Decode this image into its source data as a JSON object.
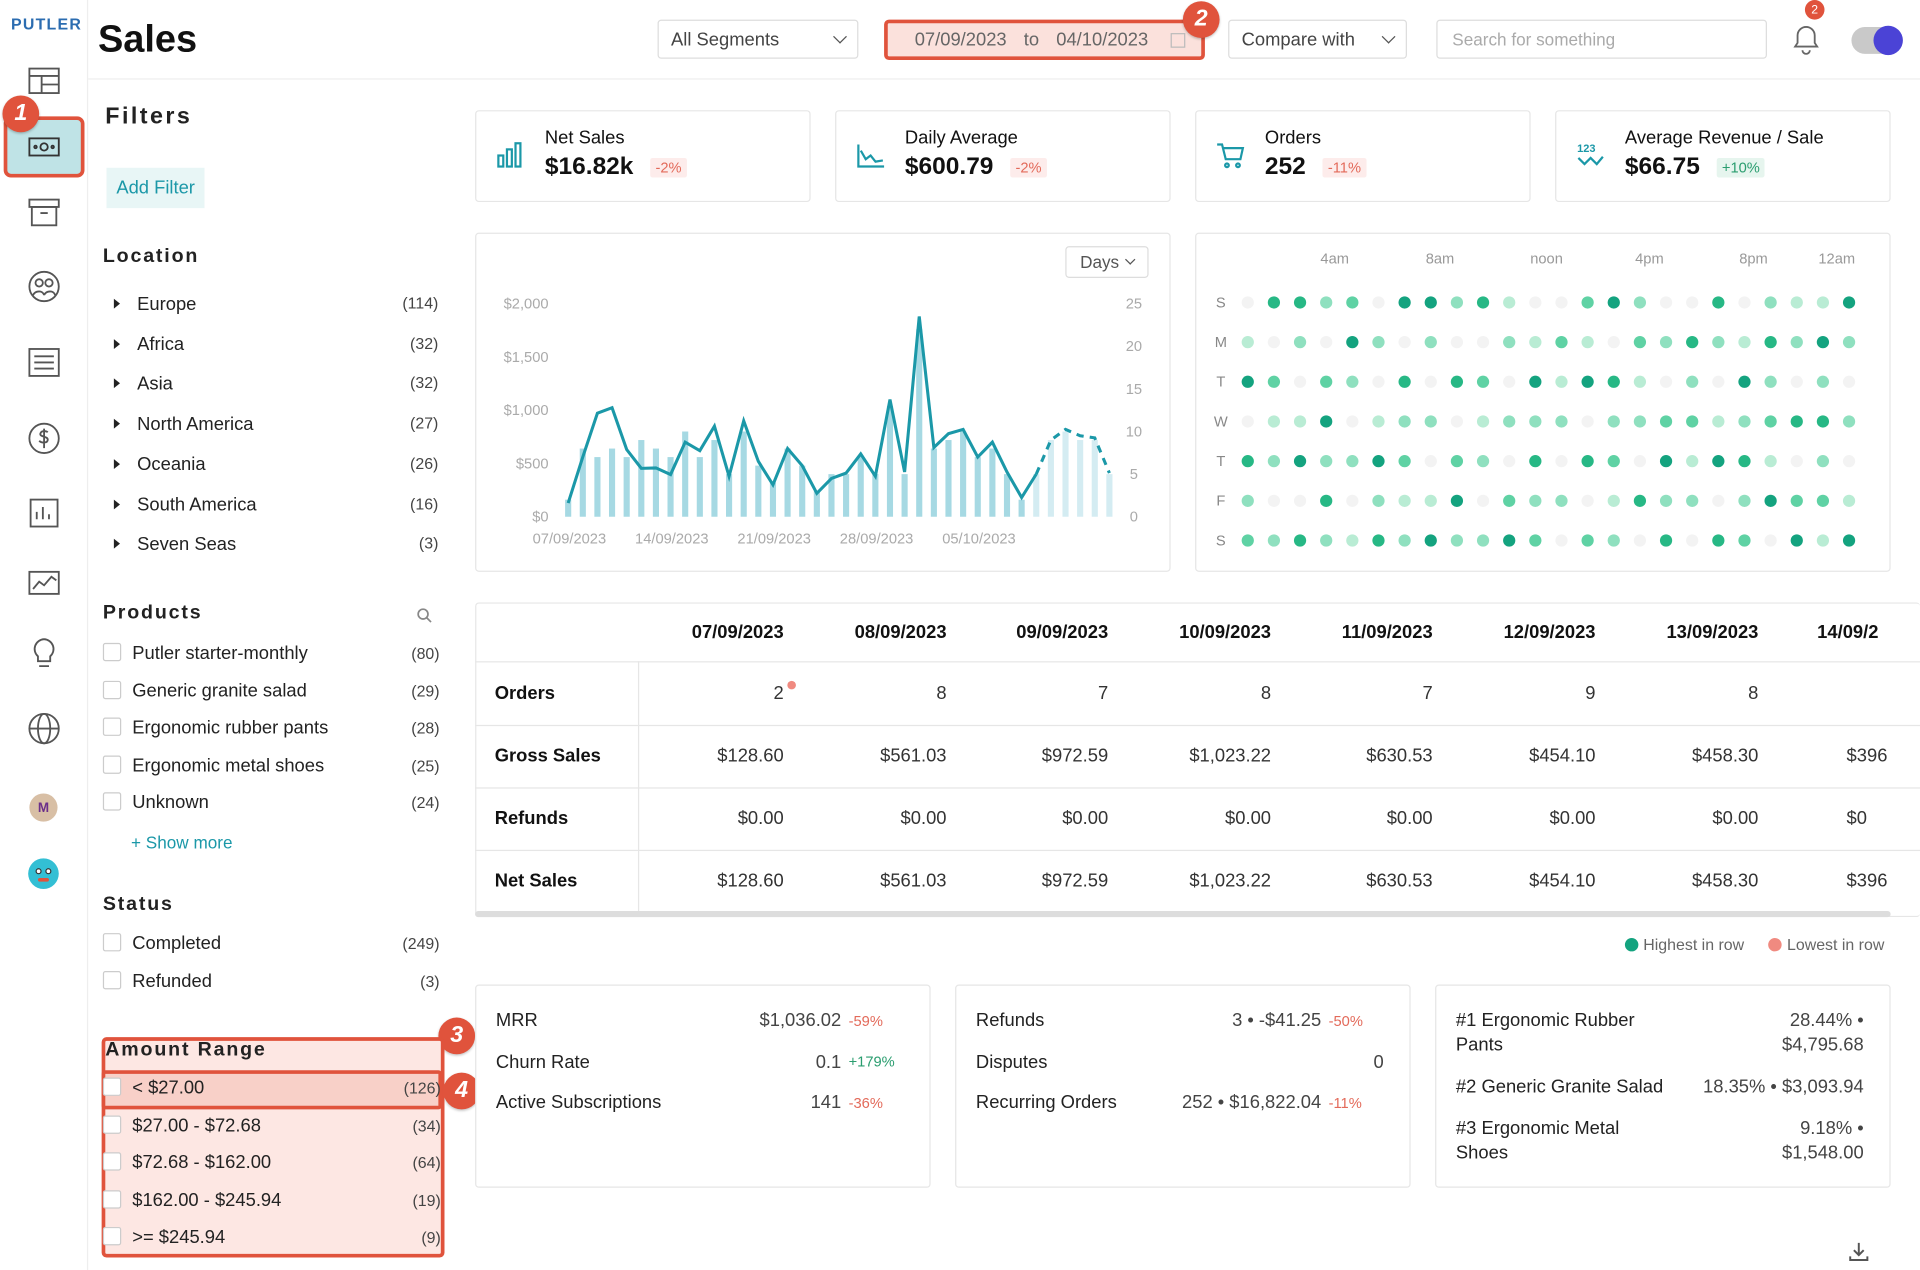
{
  "app": {
    "logo": "PUTLER",
    "page_title": "Sales"
  },
  "header": {
    "segment": "All Segments",
    "date_from": "07/09/2023",
    "date_to_label": "to",
    "date_to": "04/10/2023",
    "compare": "Compare with",
    "search_placeholder": "Search for something",
    "notif_count": "2"
  },
  "annotations": [
    "1",
    "2",
    "3",
    "4"
  ],
  "filters": {
    "title": "Filters",
    "add_filter": "Add Filter",
    "location": {
      "title": "Location",
      "items": [
        {
          "name": "Europe",
          "count": "(114)"
        },
        {
          "name": "Africa",
          "count": "(32)"
        },
        {
          "name": "Asia",
          "count": "(32)"
        },
        {
          "name": "North America",
          "count": "(27)"
        },
        {
          "name": "Oceania",
          "count": "(26)"
        },
        {
          "name": "South America",
          "count": "(16)"
        },
        {
          "name": "Seven Seas",
          "count": "(3)"
        }
      ]
    },
    "products": {
      "title": "Products",
      "items": [
        {
          "name": "Putler starter-monthly",
          "count": "(80)"
        },
        {
          "name": "Generic granite salad",
          "count": "(29)"
        },
        {
          "name": "Ergonomic rubber pants",
          "count": "(28)"
        },
        {
          "name": "Ergonomic metal shoes",
          "count": "(25)"
        },
        {
          "name": "Unknown",
          "count": "(24)"
        }
      ],
      "show_more": "+ Show more"
    },
    "status": {
      "title": "Status",
      "items": [
        {
          "name": "Completed",
          "count": "(249)"
        },
        {
          "name": "Refunded",
          "count": "(3)"
        }
      ]
    },
    "amount": {
      "title": "Amount Range",
      "items": [
        {
          "name": "< $27.00",
          "count": "(126)"
        },
        {
          "name": "$27.00 - $72.68",
          "count": "(34)"
        },
        {
          "name": "$72.68 - $162.00",
          "count": "(64)"
        },
        {
          "name": "$162.00 - $245.94",
          "count": "(19)"
        },
        {
          "name": ">= $245.94",
          "count": "(9)"
        }
      ]
    }
  },
  "kpis": [
    {
      "label": "Net Sales",
      "value": "$16.82k",
      "delta": "-2%",
      "dir": "neg",
      "icon": "bar-chart-icon"
    },
    {
      "label": "Daily Average",
      "value": "$600.79",
      "delta": "-2%",
      "dir": "neg",
      "icon": "area-chart-icon"
    },
    {
      "label": "Orders",
      "value": "252",
      "delta": "-11%",
      "dir": "neg",
      "icon": "cart-icon"
    },
    {
      "label": "Average Revenue / Sale",
      "value": "$66.75",
      "delta": "+10%",
      "dir": "pos",
      "icon": "numbers-icon"
    }
  ],
  "chart_data": [
    {
      "type": "bar",
      "granularity": "Days",
      "y_left_ticks": [
        "$2,000",
        "$1,500",
        "$1,000",
        "$500",
        "$0"
      ],
      "y_right_ticks": [
        "25",
        "20",
        "15",
        "10",
        "5",
        "0"
      ],
      "x_ticks": [
        "07/09/2023",
        "14/09/2023",
        "21/09/2023",
        "28/09/2023",
        "05/10/2023"
      ],
      "series": [
        {
          "values": [
            128.6,
            561.03,
            972.59,
            1023.22,
            630.53,
            454.1,
            458.3,
            396,
            700,
            620,
            850,
            380,
            900,
            520,
            300,
            640,
            480,
            220,
            360,
            410,
            590,
            380,
            1100,
            420,
            1880,
            650,
            780,
            820,
            560,
            700,
            420,
            180,
            400,
            720,
            820,
            760,
            740,
            410
          ]
        },
        {
          "values": [
            2,
            8,
            7,
            8,
            7,
            9,
            8,
            7,
            10,
            7,
            9,
            5,
            10,
            6,
            4,
            8,
            6,
            3,
            5,
            5,
            7,
            5,
            13,
            5,
            22,
            8,
            9,
            10,
            7,
            8,
            5,
            2,
            5,
            9,
            10,
            9,
            9,
            5
          ]
        }
      ]
    },
    {
      "type": "heatmap",
      "x_ticks": [
        "4am",
        "8am",
        "noon",
        "4pm",
        "8pm",
        "12am"
      ],
      "rows": [
        "S",
        "M",
        "T",
        "W",
        "T",
        "F",
        "S"
      ]
    }
  ],
  "heatmap": {
    "x_labels": [
      "4am",
      "8am",
      "noon",
      "4pm",
      "8pm",
      "12am"
    ],
    "rows": [
      "S",
      "M",
      "T",
      "W",
      "T",
      "F",
      "S"
    ]
  },
  "table": {
    "dates": [
      "07/09/2023",
      "08/09/2023",
      "09/09/2023",
      "10/09/2023",
      "11/09/2023",
      "12/09/2023",
      "13/09/2023",
      "14/09/2"
    ],
    "rows": [
      {
        "label": "Orders",
        "values": [
          "2",
          "8",
          "7",
          "8",
          "7",
          "9",
          "8",
          ""
        ]
      },
      {
        "label": "Gross Sales",
        "values": [
          "$128.60",
          "$561.03",
          "$972.59",
          "$1,023.22",
          "$630.53",
          "$454.10",
          "$458.30",
          "$396"
        ]
      },
      {
        "label": "Refunds",
        "values": [
          "$0.00",
          "$0.00",
          "$0.00",
          "$0.00",
          "$0.00",
          "$0.00",
          "$0.00",
          "$0"
        ]
      },
      {
        "label": "Net Sales",
        "values": [
          "$128.60",
          "$561.03",
          "$972.59",
          "$1,023.22",
          "$630.53",
          "$454.10",
          "$458.30",
          "$396"
        ]
      }
    ],
    "legend_high": "Highest in row",
    "legend_low": "Lowest in row"
  },
  "bottom": {
    "card1": [
      {
        "label": "MRR",
        "value": "$1,036.02",
        "delta": "-59%",
        "dir": "neg"
      },
      {
        "label": "Churn Rate",
        "value": "0.1",
        "delta": "+179%",
        "dir": "pos"
      },
      {
        "label": "Active Subscriptions",
        "value": "141",
        "delta": "-36%",
        "dir": "neg"
      }
    ],
    "card2": [
      {
        "label": "Refunds",
        "value": "3 • -$41.25",
        "delta": "-50%",
        "dir": "neg"
      },
      {
        "label": "Disputes",
        "value": "0",
        "delta": "",
        "dir": ""
      },
      {
        "label": "Recurring Orders",
        "value": "252 • $16,822.04",
        "delta": "-11%",
        "dir": "neg"
      }
    ],
    "card3": [
      {
        "label1": "#1 Ergonomic Rubber",
        "label2": "Pants",
        "v1": "28.44% •",
        "v2": "$4,795.68"
      },
      {
        "label1": "#2 Generic Granite Salad",
        "label2": "",
        "v1": "18.35% • $3,093.94",
        "v2": ""
      },
      {
        "label1": "#3 Ergonomic Metal",
        "label2": "Shoes",
        "v1": "9.18% •",
        "v2": "$1,548.00"
      }
    ]
  },
  "colors": {
    "accent": "#1b98a8",
    "annotation": "#e0533c",
    "heat_high": "#14a37f",
    "heat_low": "#f08a80"
  }
}
